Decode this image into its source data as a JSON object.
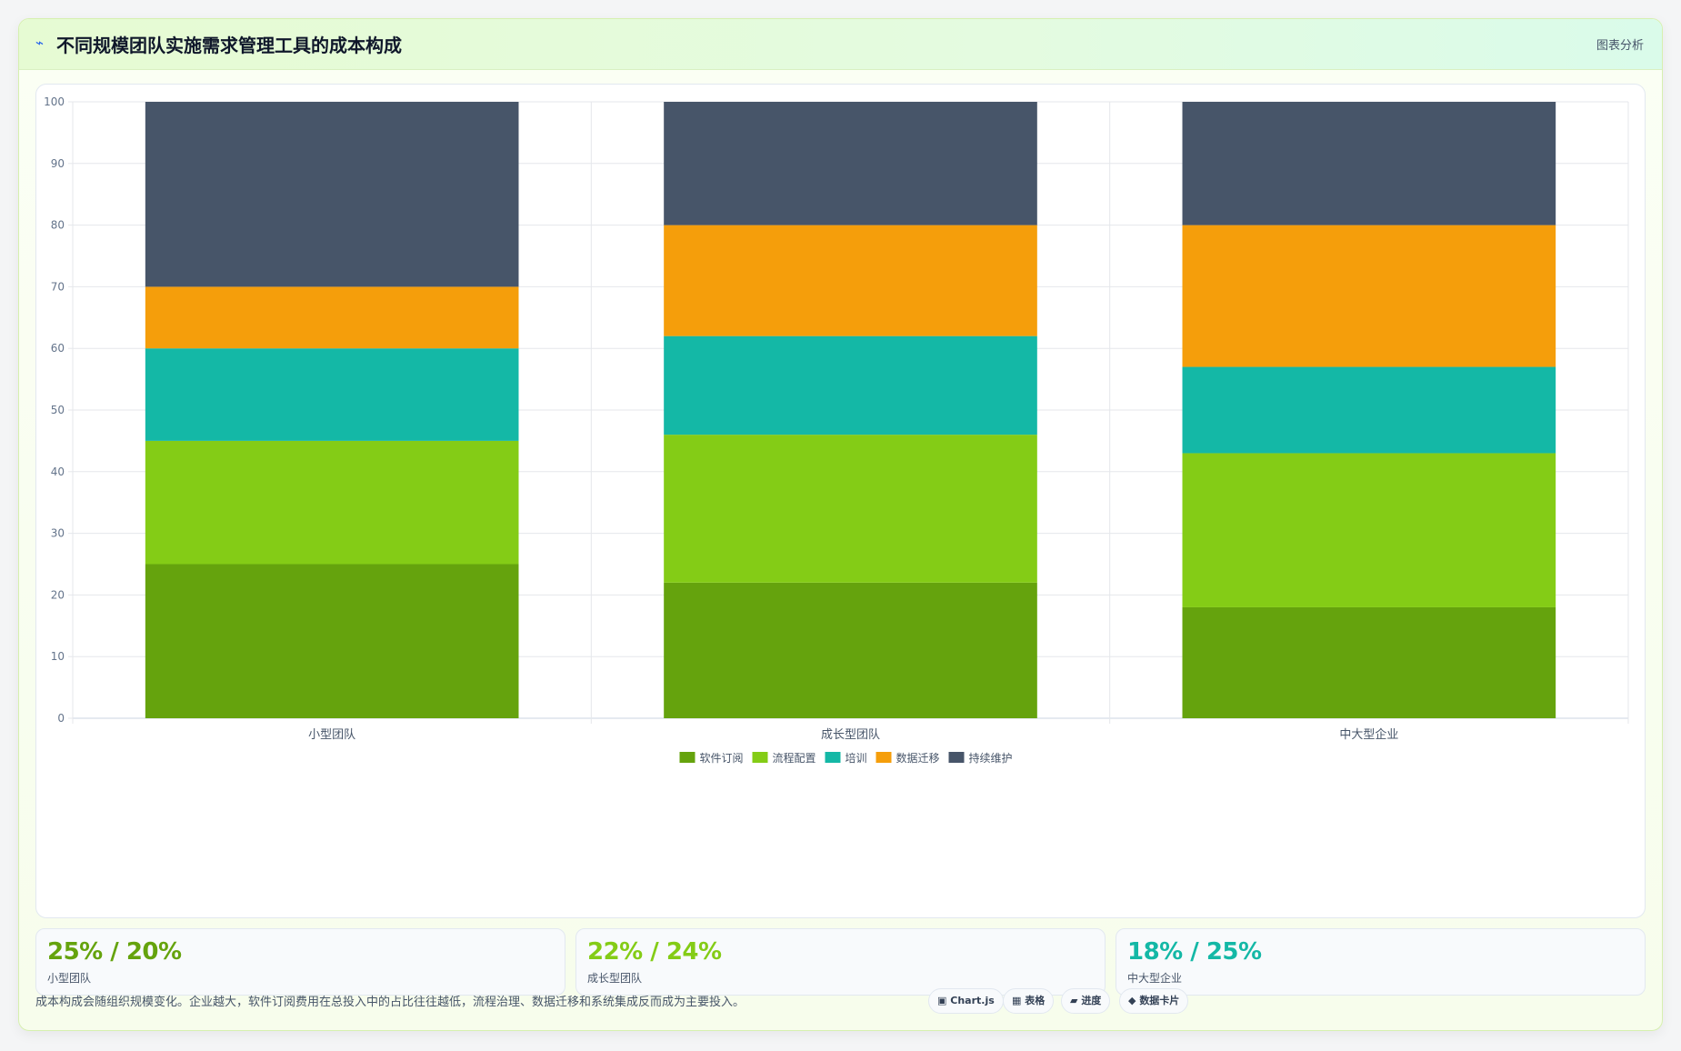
{
  "header": {
    "icon": "pulse-icon",
    "title": "不同规模团队实施需求管理工具的成本构成",
    "tag": "图表分析"
  },
  "chart_data": {
    "type": "bar",
    "stacked": true,
    "categories": [
      "小型团队",
      "成长型团队",
      "中大型企业"
    ],
    "series": [
      {
        "name": "软件订阅",
        "color": "#65a30d",
        "values": [
          25,
          22,
          18
        ]
      },
      {
        "name": "流程配置",
        "color": "#84cc16",
        "values": [
          20,
          24,
          25
        ]
      },
      {
        "name": "培训",
        "color": "#14b8a6",
        "values": [
          15,
          16,
          14
        ]
      },
      {
        "name": "数据迁移",
        "color": "#f59e0b",
        "values": [
          10,
          18,
          23
        ]
      },
      {
        "name": "持续维护",
        "color": "#475569",
        "values": [
          30,
          20,
          20
        ]
      }
    ],
    "ylim": [
      0,
      100
    ],
    "yticks": [
      0,
      10,
      20,
      30,
      40,
      50,
      60,
      70,
      80,
      90,
      100
    ],
    "grid": true,
    "legend": "bottom"
  },
  "stats": [
    {
      "value": "25% / 20%",
      "label": "小型团队",
      "color": "#65a30d"
    },
    {
      "value": "22% / 24%",
      "label": "成长型团队",
      "color": "#84cc16"
    },
    {
      "value": "18% / 25%",
      "label": "中大型企业",
      "color": "#14b8a6"
    }
  ],
  "note": "成本构成会随组织规模变化。企业越大，软件订阅费用在总投入中的占比往往越低，流程治理、数据迁移和系统集成反而成为主要投入。",
  "pills": [
    {
      "icon": "▣",
      "label": "Chart.js"
    },
    {
      "icon": "▦",
      "label": "表格"
    },
    {
      "icon": "▰",
      "label": "进度"
    },
    {
      "icon": "◆",
      "label": "数据卡片"
    }
  ]
}
